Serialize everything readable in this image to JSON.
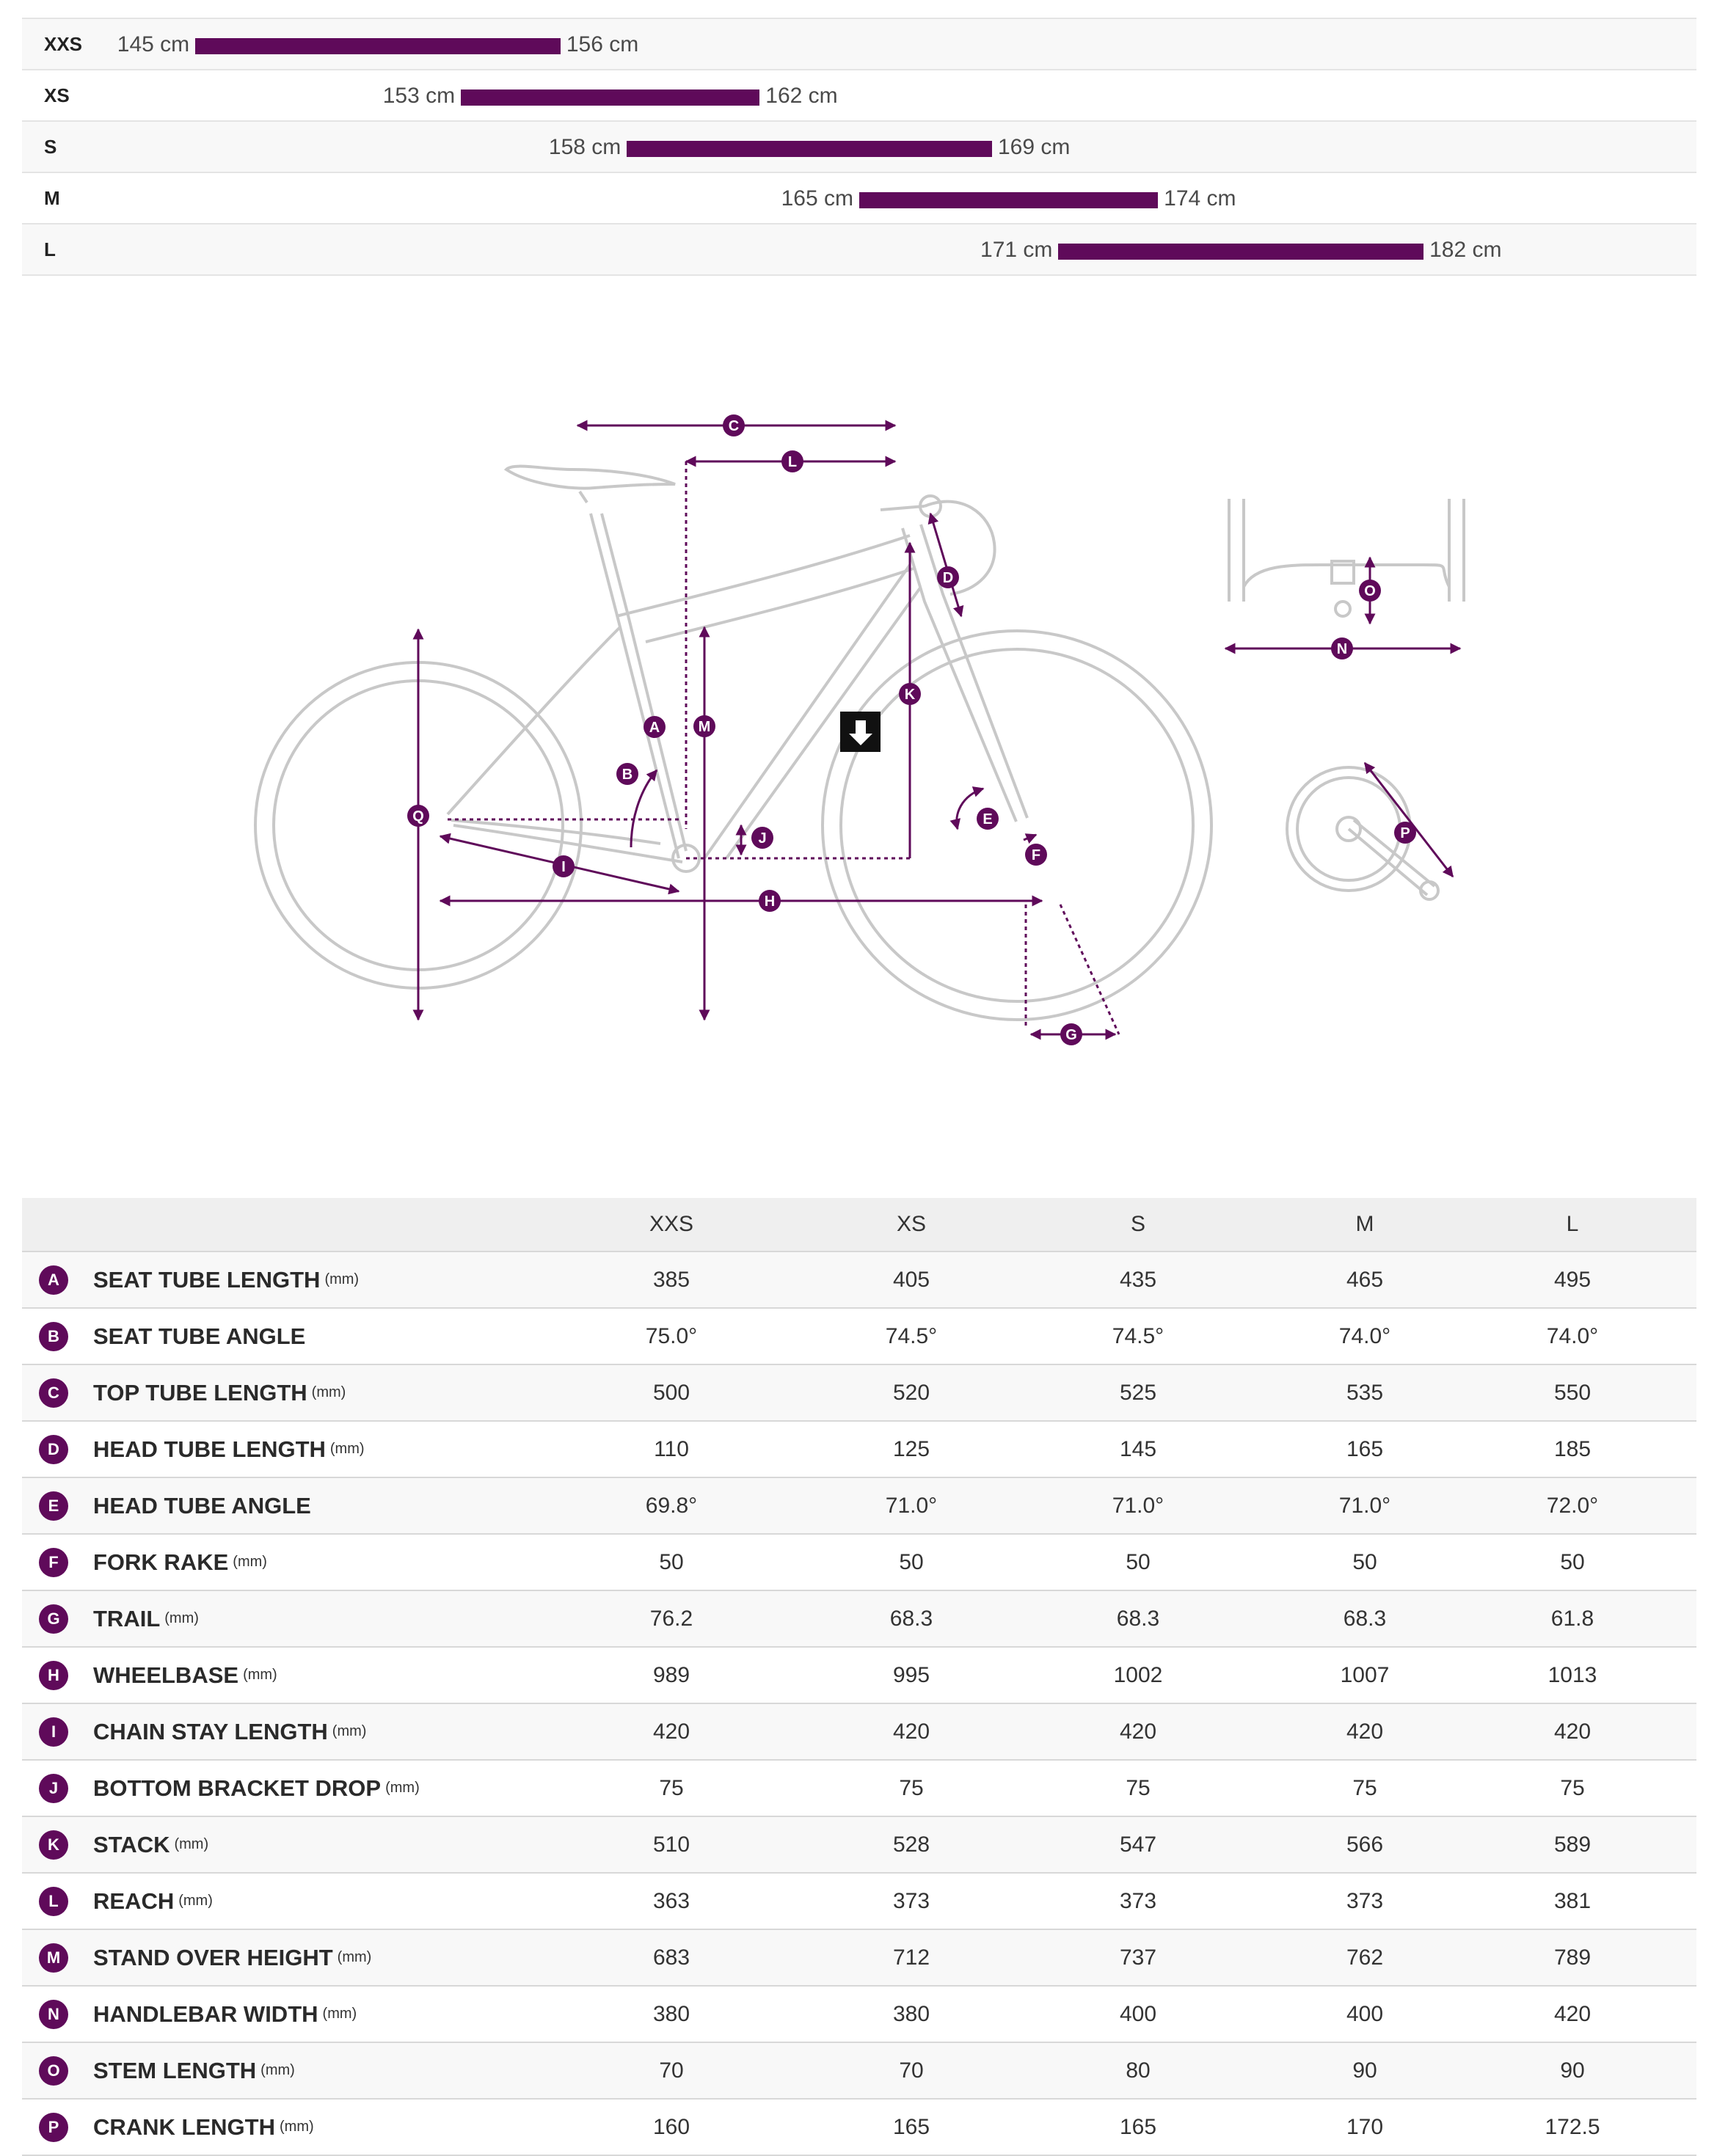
{
  "colors": {
    "accent": "#5f0a5a",
    "frame_line": "#c8c8c8",
    "row_alt": "#f8f8f8",
    "header_bg": "#efefef"
  },
  "rider_height": {
    "axis_min_cm": 140,
    "axis_max_cm": 190,
    "rows": [
      {
        "size": "XXS",
        "min": 145,
        "max": 156,
        "min_label": "145 cm",
        "max_label": "156 cm"
      },
      {
        "size": "XS",
        "min": 153,
        "max": 162,
        "min_label": "153 cm",
        "max_label": "162 cm"
      },
      {
        "size": "S",
        "min": 158,
        "max": 169,
        "min_label": "158 cm",
        "max_label": "169 cm"
      },
      {
        "size": "M",
        "min": 165,
        "max": 174,
        "min_label": "165 cm",
        "max_label": "174 cm"
      },
      {
        "size": "L",
        "min": 171,
        "max": 182,
        "min_label": "171 cm",
        "max_label": "182 cm"
      }
    ]
  },
  "diagram": {
    "labels": [
      "A",
      "B",
      "C",
      "D",
      "E",
      "F",
      "G",
      "H",
      "I",
      "J",
      "K",
      "L",
      "M",
      "N",
      "O",
      "P",
      "Q"
    ],
    "download_icon": "download-arrow-icon"
  },
  "geometry": {
    "headers": [
      "XXS",
      "XS",
      "S",
      "M",
      "L"
    ],
    "rows": [
      {
        "key": "A",
        "name": "SEAT TUBE LENGTH",
        "unit": "(mm)",
        "values": [
          "385",
          "405",
          "435",
          "465",
          "495"
        ]
      },
      {
        "key": "B",
        "name": "SEAT TUBE ANGLE",
        "unit": "",
        "values": [
          "75.0°",
          "74.5°",
          "74.5°",
          "74.0°",
          "74.0°"
        ]
      },
      {
        "key": "C",
        "name": "TOP TUBE LENGTH",
        "unit": "(mm)",
        "values": [
          "500",
          "520",
          "525",
          "535",
          "550"
        ]
      },
      {
        "key": "D",
        "name": "HEAD TUBE LENGTH",
        "unit": "(mm)",
        "values": [
          "110",
          "125",
          "145",
          "165",
          "185"
        ]
      },
      {
        "key": "E",
        "name": "HEAD TUBE ANGLE",
        "unit": "",
        "values": [
          "69.8°",
          "71.0°",
          "71.0°",
          "71.0°",
          "72.0°"
        ]
      },
      {
        "key": "F",
        "name": "FORK RAKE",
        "unit": "(mm)",
        "values": [
          "50",
          "50",
          "50",
          "50",
          "50"
        ]
      },
      {
        "key": "G",
        "name": "TRAIL",
        "unit": "(mm)",
        "values": [
          "76.2",
          "68.3",
          "68.3",
          "68.3",
          "61.8"
        ]
      },
      {
        "key": "H",
        "name": "WHEELBASE",
        "unit": "(mm)",
        "values": [
          "989",
          "995",
          "1002",
          "1007",
          "1013"
        ]
      },
      {
        "key": "I",
        "name": "CHAIN STAY LENGTH",
        "unit": "(mm)",
        "values": [
          "420",
          "420",
          "420",
          "420",
          "420"
        ]
      },
      {
        "key": "J",
        "name": "BOTTOM BRACKET DROP",
        "unit": "(mm)",
        "values": [
          "75",
          "75",
          "75",
          "75",
          "75"
        ]
      },
      {
        "key": "K",
        "name": "STACK",
        "unit": "(mm)",
        "values": [
          "510",
          "528",
          "547",
          "566",
          "589"
        ]
      },
      {
        "key": "L",
        "name": "REACH",
        "unit": "(mm)",
        "values": [
          "363",
          "373",
          "373",
          "373",
          "381"
        ]
      },
      {
        "key": "M",
        "name": "STAND OVER HEIGHT",
        "unit": "(mm)",
        "values": [
          "683",
          "712",
          "737",
          "762",
          "789"
        ]
      },
      {
        "key": "N",
        "name": "HANDLEBAR WIDTH",
        "unit": "(mm)",
        "values": [
          "380",
          "380",
          "400",
          "400",
          "420"
        ]
      },
      {
        "key": "O",
        "name": "STEM LENGTH",
        "unit": "(mm)",
        "values": [
          "70",
          "70",
          "80",
          "90",
          "90"
        ]
      },
      {
        "key": "P",
        "name": "CRANK LENGTH",
        "unit": "(mm)",
        "values": [
          "160",
          "165",
          "165",
          "170",
          "172.5"
        ]
      }
    ]
  }
}
